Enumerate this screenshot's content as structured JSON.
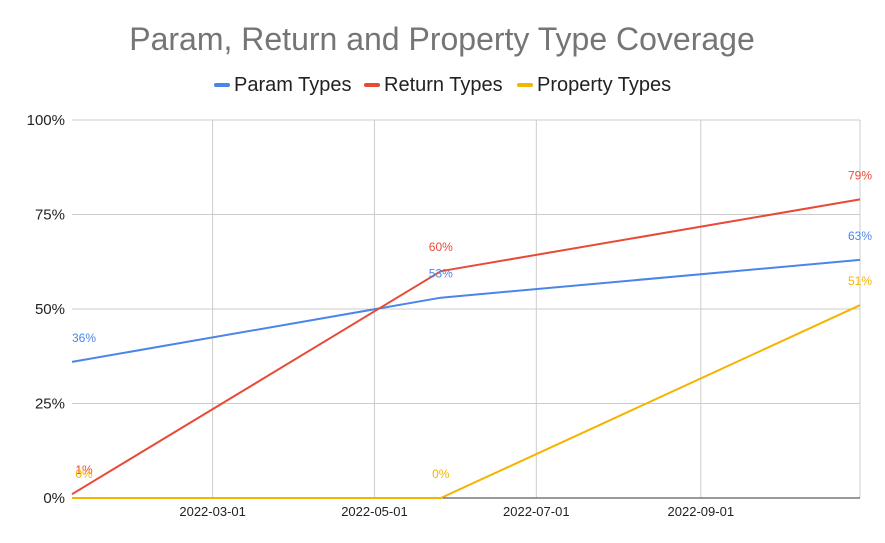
{
  "chart_data": {
    "type": "line",
    "title": "Param, Return and Property Type Coverage",
    "xlabel": "",
    "ylabel": "",
    "x_type": "date",
    "xlim": [
      "2022-01-07",
      "2022-10-31"
    ],
    "ylim": [
      0,
      100
    ],
    "y_ticks": [
      0,
      25,
      50,
      75,
      100
    ],
    "y_tick_labels": [
      "0%",
      "25%",
      "50%",
      "75%",
      "100%"
    ],
    "x_ticks": [
      "2022-03-01",
      "2022-05-01",
      "2022-07-01",
      "2022-09-01"
    ],
    "x_tick_labels": [
      "2022-03-01",
      "2022-05-01",
      "2022-07-01",
      "2022-09-01"
    ],
    "grid": true,
    "legend_position": "top",
    "series": [
      {
        "name": "Param Types",
        "color": "#4a86e8",
        "x": [
          "2022-01-07",
          "2022-05-26",
          "2022-10-31"
        ],
        "values": [
          36,
          53,
          63
        ],
        "data_labels": [
          "36%",
          "53%",
          "63%"
        ]
      },
      {
        "name": "Return Types",
        "color": "#e84a36",
        "x": [
          "2022-01-07",
          "2022-05-26",
          "2022-10-31"
        ],
        "values": [
          1,
          60,
          79
        ],
        "data_labels": [
          "1%",
          "60%",
          "79%"
        ]
      },
      {
        "name": "Property Types",
        "color": "#f4b400",
        "x": [
          "2022-01-07",
          "2022-05-26",
          "2022-10-31"
        ],
        "values": [
          0,
          0,
          51
        ],
        "data_labels": [
          "0%",
          "0%",
          "51%"
        ]
      }
    ]
  }
}
